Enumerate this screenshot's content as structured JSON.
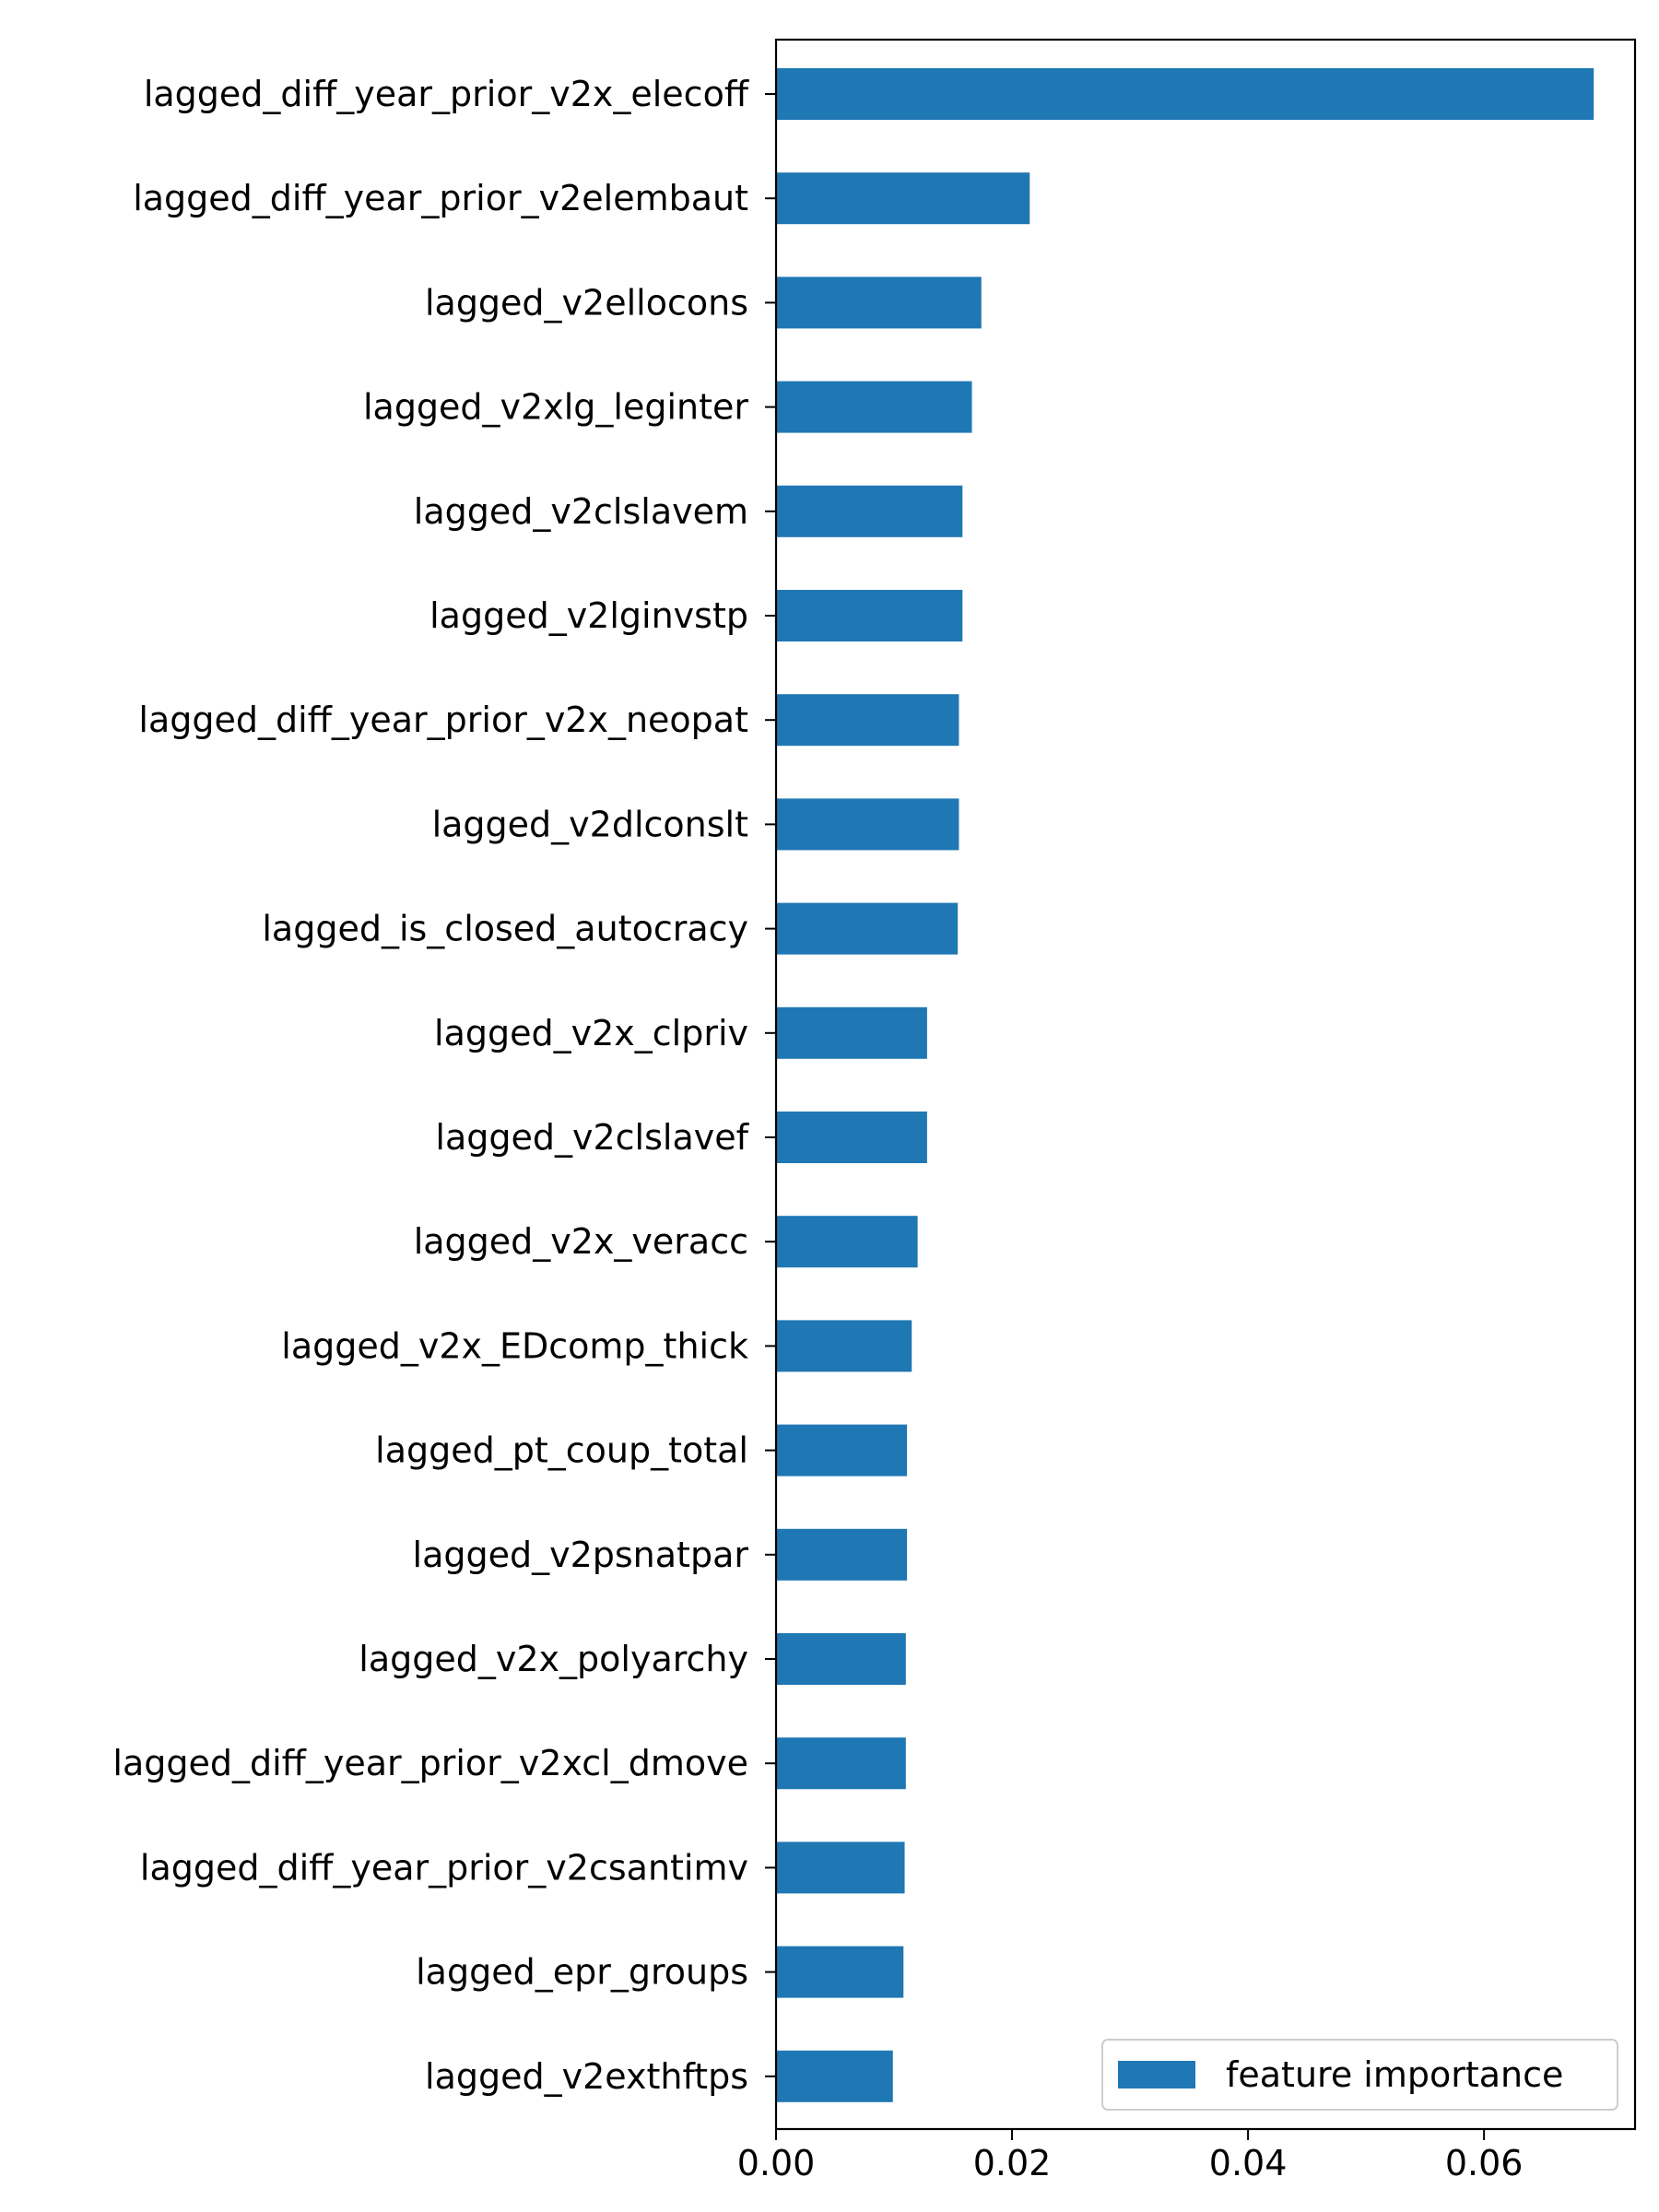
{
  "chart_data": {
    "type": "bar",
    "orientation": "horizontal",
    "categories": [
      "lagged_diff_year_prior_v2x_elecoff",
      "lagged_diff_year_prior_v2elembaut",
      "lagged_v2ellocons",
      "lagged_v2xlg_leginter",
      "lagged_v2clslavem",
      "lagged_v2lginvstp",
      "lagged_diff_year_prior_v2x_neopat",
      "lagged_v2dlconslt",
      "lagged_is_closed_autocracy",
      "lagged_v2x_clpriv",
      "lagged_v2clslavef",
      "lagged_v2x_veracc",
      "lagged_v2x_EDcomp_thick",
      "lagged_pt_coup_total",
      "lagged_v2psnatpar",
      "lagged_v2x_polyarchy",
      "lagged_diff_year_prior_v2xcl_dmove",
      "lagged_diff_year_prior_v2csantimv",
      "lagged_epr_groups",
      "lagged_v2exthftps"
    ],
    "series": [
      {
        "name": "feature importance",
        "color": "#1f77b4",
        "values": [
          0.0693,
          0.0215,
          0.0174,
          0.0166,
          0.0158,
          0.0158,
          0.0155,
          0.0155,
          0.0154,
          0.0128,
          0.0128,
          0.012,
          0.0115,
          0.0111,
          0.0111,
          0.011,
          0.011,
          0.0109,
          0.0108,
          0.0099
        ]
      }
    ],
    "x_ticks": [
      0.0,
      0.02,
      0.04,
      0.06
    ],
    "x_tick_labels": [
      "0.00",
      "0.02",
      "0.04",
      "0.06"
    ],
    "xlim": [
      0.0,
      0.0728
    ],
    "title": "",
    "xlabel": "",
    "ylabel": "",
    "grid": false,
    "legend": {
      "placement": "lower-right",
      "entries": [
        "feature importance"
      ]
    }
  }
}
